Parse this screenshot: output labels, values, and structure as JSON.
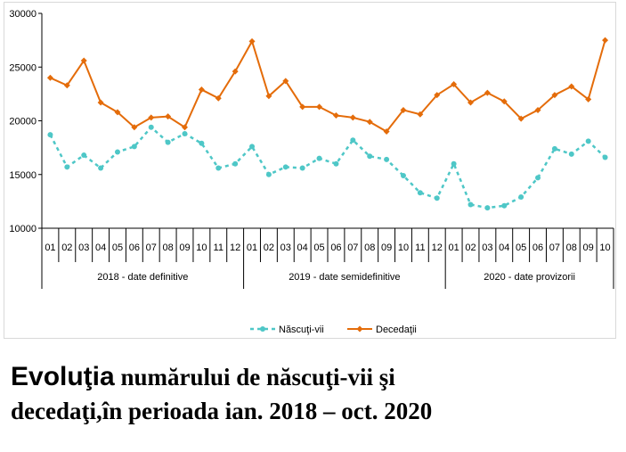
{
  "caption": {
    "line1_lead": "Evoluţia",
    "line1_rest": " numărului de născuţi-vii şi",
    "line2": "decedaţi,în perioada ian. 2018 – oct. 2020"
  },
  "chart_data": {
    "type": "line",
    "ylim": [
      10000,
      30000
    ],
    "yticks": [
      "10000",
      "15000",
      "20000",
      "25000",
      "30000"
    ],
    "categories": [
      "01",
      "02",
      "03",
      "04",
      "05",
      "06",
      "07",
      "08",
      "09",
      "10",
      "11",
      "12",
      "01",
      "02",
      "03",
      "04",
      "05",
      "06",
      "07",
      "08",
      "09",
      "10",
      "11",
      "12",
      "01",
      "02",
      "03",
      "04",
      "05",
      "06",
      "07",
      "08",
      "09",
      "10"
    ],
    "groups": [
      {
        "label": "2018 - date definitive",
        "count": 12
      },
      {
        "label": "2019 - date semidefinitive",
        "count": 12
      },
      {
        "label": "2020 - date provizorii",
        "count": 10
      }
    ],
    "series": [
      {
        "name": "Născuţi-vii",
        "color": "#4ec7c7",
        "dashed": true,
        "values": [
          18700,
          15700,
          16800,
          15600,
          17100,
          17600,
          19400,
          18000,
          18800,
          17900,
          15600,
          16000,
          17600,
          15000,
          15700,
          15600,
          16500,
          16000,
          18200,
          16700,
          16400,
          14900,
          13300,
          12800,
          16000,
          12200,
          11900,
          12100,
          12900,
          14700,
          17400,
          16900,
          18100,
          16600
        ]
      },
      {
        "name": "Decedaţii",
        "color": "#e46c0a",
        "dashed": false,
        "values": [
          24000,
          23300,
          25600,
          21700,
          20800,
          19400,
          20300,
          20400,
          19400,
          22900,
          22100,
          24600,
          27400,
          22300,
          23700,
          21300,
          21300,
          20500,
          20300,
          19900,
          19000,
          21000,
          20600,
          22400,
          23400,
          21700,
          22600,
          21800,
          20200,
          21000,
          22400,
          23200,
          22000,
          27500
        ]
      }
    ],
    "legend_position": "bottom",
    "grid": false
  }
}
